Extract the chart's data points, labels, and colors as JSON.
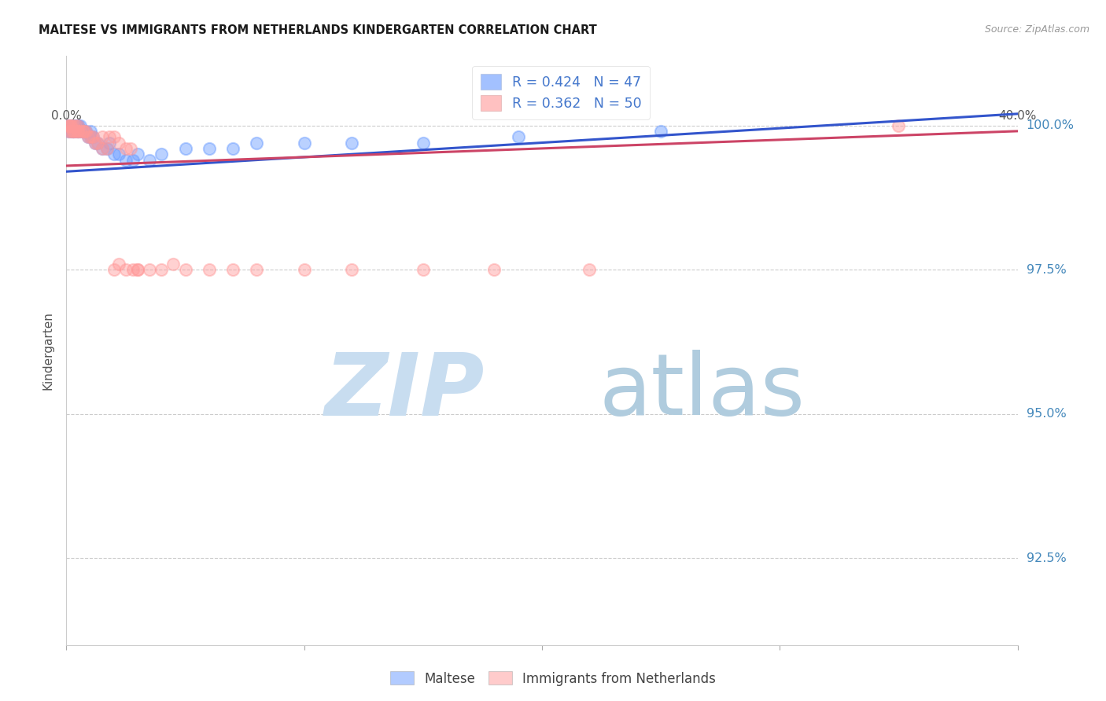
{
  "title": "MALTESE VS IMMIGRANTS FROM NETHERLANDS KINDERGARTEN CORRELATION CHART",
  "source": "Source: ZipAtlas.com",
  "ylabel": "Kindergarten",
  "ytick_labels": [
    "100.0%",
    "97.5%",
    "95.0%",
    "92.5%"
  ],
  "ytick_values": [
    1.0,
    0.975,
    0.95,
    0.925
  ],
  "xlim": [
    0.0,
    0.4
  ],
  "ylim": [
    0.91,
    1.012
  ],
  "blue_R": 0.424,
  "blue_N": 47,
  "pink_R": 0.362,
  "pink_N": 50,
  "blue_color": "#6699ff",
  "pink_color": "#ff9999",
  "trend_blue": "#3355cc",
  "trend_pink": "#cc4466",
  "watermark_zip_color": "#c8ddf0",
  "watermark_atlas_color": "#b0ccde",
  "legend_label_color": "#4477cc",
  "ytick_color": "#4488bb",
  "xtick_color": "#555555",
  "blue_trendline": [
    0.0,
    0.992,
    0.4,
    1.002
  ],
  "pink_trendline": [
    0.0,
    0.993,
    0.4,
    0.999
  ],
  "blue_x": [
    0.001,
    0.001,
    0.001,
    0.002,
    0.002,
    0.002,
    0.003,
    0.003,
    0.003,
    0.003,
    0.004,
    0.004,
    0.004,
    0.005,
    0.005,
    0.005,
    0.005,
    0.006,
    0.006,
    0.007,
    0.007,
    0.008,
    0.009,
    0.01,
    0.01,
    0.011,
    0.012,
    0.013,
    0.015,
    0.017,
    0.018,
    0.02,
    0.022,
    0.025,
    0.028,
    0.03,
    0.035,
    0.04,
    0.05,
    0.06,
    0.07,
    0.08,
    0.1,
    0.12,
    0.15,
    0.19,
    0.25
  ],
  "blue_y": [
    0.999,
    1.0,
    1.0,
    0.999,
    1.0,
    1.0,
    0.999,
    1.0,
    1.0,
    0.999,
    0.999,
    1.0,
    1.0,
    0.999,
    1.0,
    1.0,
    0.999,
    0.999,
    1.0,
    0.999,
    0.999,
    0.999,
    0.998,
    0.998,
    0.999,
    0.998,
    0.997,
    0.997,
    0.996,
    0.996,
    0.997,
    0.995,
    0.995,
    0.994,
    0.994,
    0.995,
    0.994,
    0.995,
    0.996,
    0.996,
    0.996,
    0.997,
    0.997,
    0.997,
    0.997,
    0.998,
    0.999
  ],
  "pink_x": [
    0.001,
    0.001,
    0.001,
    0.002,
    0.002,
    0.002,
    0.003,
    0.003,
    0.003,
    0.004,
    0.004,
    0.005,
    0.005,
    0.005,
    0.006,
    0.007,
    0.007,
    0.008,
    0.009,
    0.01,
    0.011,
    0.012,
    0.013,
    0.015,
    0.017,
    0.02,
    0.022,
    0.025,
    0.028,
    0.03,
    0.015,
    0.018,
    0.02,
    0.022,
    0.025,
    0.027,
    0.03,
    0.035,
    0.04,
    0.045,
    0.05,
    0.06,
    0.07,
    0.08,
    0.1,
    0.12,
    0.15,
    0.18,
    0.22,
    0.35
  ],
  "pink_y": [
    0.999,
    1.0,
    1.0,
    0.999,
    1.0,
    1.0,
    0.999,
    0.999,
    1.0,
    0.999,
    1.0,
    0.999,
    0.999,
    1.0,
    0.999,
    0.999,
    0.999,
    0.999,
    0.998,
    0.998,
    0.998,
    0.997,
    0.997,
    0.996,
    0.996,
    0.975,
    0.976,
    0.975,
    0.975,
    0.975,
    0.998,
    0.998,
    0.998,
    0.997,
    0.996,
    0.996,
    0.975,
    0.975,
    0.975,
    0.976,
    0.975,
    0.975,
    0.975,
    0.975,
    0.975,
    0.975,
    0.975,
    0.975,
    0.975,
    1.0
  ],
  "dot_size": 120
}
